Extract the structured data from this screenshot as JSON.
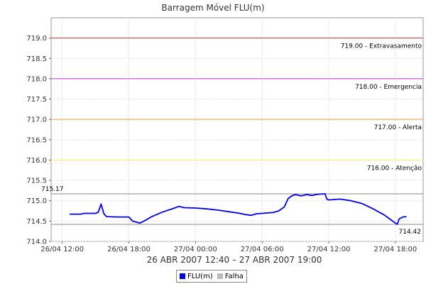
{
  "chart_data": {
    "type": "line",
    "title": "Barragem Móvel FLU(m)",
    "xlabel": "26 ABR 2007 12:40 – 27 ABR 2007 19:00",
    "ylabel": "",
    "x_ticks": [
      "26/04 12:00",
      "26/04 18:00",
      "27/04 00:00",
      "27/04 06:00",
      "27/04 12:00",
      "27/04 18:00"
    ],
    "x_range": [
      "26/04 11:00",
      "27/04 20:30"
    ],
    "ylim": [
      714.0,
      719.5
    ],
    "y_ticks": [
      "714.0",
      "714.5",
      "715.0",
      "715.5",
      "716.0",
      "716.5",
      "717.0",
      "717.5",
      "718.0",
      "718.5",
      "719.0"
    ],
    "grid": true,
    "thresholds": [
      {
        "value": 719.0,
        "label": "719.00 - Extravasamento",
        "color": "#cc3333"
      },
      {
        "value": 718.0,
        "label": "718.00 - Emergencia",
        "color": "#cc33cc"
      },
      {
        "value": 717.0,
        "label": "717.00 - Alerta",
        "color": "#ff9933"
      },
      {
        "value": 716.0,
        "label": "716.00 - Atenção",
        "color": "#ffee66"
      }
    ],
    "range_lines": [
      {
        "value": 715.17,
        "label": "715.17",
        "color": "#888888"
      },
      {
        "value": 714.42,
        "label": "714.42",
        "color": "#888888"
      }
    ],
    "series": [
      {
        "name": "FLU(m)",
        "color": "#0000ee",
        "points": [
          [
            "26/04 12:40",
            714.67
          ],
          [
            "26/04 13:40",
            714.67
          ],
          [
            "26/04 14:00",
            714.69
          ],
          [
            "26/04 15:00",
            714.69
          ],
          [
            "26/04 15:15",
            714.72
          ],
          [
            "26/04 15:30",
            714.92
          ],
          [
            "26/04 15:45",
            714.68
          ],
          [
            "26/04 16:00",
            714.61
          ],
          [
            "26/04 17:00",
            714.6
          ],
          [
            "26/04 18:00",
            714.6
          ],
          [
            "26/04 18:20",
            714.5
          ],
          [
            "26/04 19:00",
            714.45
          ],
          [
            "26/04 19:30",
            714.52
          ],
          [
            "26/04 20:00",
            714.6
          ],
          [
            "26/04 21:00",
            714.72
          ],
          [
            "26/04 22:00",
            714.81
          ],
          [
            "26/04 22:30",
            714.86
          ],
          [
            "26/04 23:00",
            714.83
          ],
          [
            "27/04 00:00",
            714.82
          ],
          [
            "27/04 01:00",
            714.8
          ],
          [
            "27/04 02:00",
            714.77
          ],
          [
            "27/04 03:00",
            714.73
          ],
          [
            "27/04 04:00",
            714.69
          ],
          [
            "27/04 04:30",
            714.66
          ],
          [
            "27/04 05:00",
            714.64
          ],
          [
            "27/04 05:30",
            714.68
          ],
          [
            "27/04 06:00",
            714.69
          ],
          [
            "27/04 07:00",
            714.71
          ],
          [
            "27/04 07:30",
            714.75
          ],
          [
            "27/04 08:00",
            714.85
          ],
          [
            "27/04 08:20",
            715.05
          ],
          [
            "27/04 08:40",
            715.12
          ],
          [
            "27/04 09:00",
            715.15
          ],
          [
            "27/04 09:30",
            715.12
          ],
          [
            "27/04 10:00",
            715.15
          ],
          [
            "27/04 10:30",
            715.13
          ],
          [
            "27/04 11:00",
            715.16
          ],
          [
            "27/04 11:40",
            715.17
          ],
          [
            "27/04 11:50",
            715.04
          ],
          [
            "27/04 12:00",
            715.02
          ],
          [
            "27/04 13:00",
            715.04
          ],
          [
            "27/04 14:00",
            715.0
          ],
          [
            "27/04 15:00",
            714.93
          ],
          [
            "27/04 16:00",
            714.8
          ],
          [
            "27/04 17:00",
            714.65
          ],
          [
            "27/04 17:30",
            714.55
          ],
          [
            "27/04 18:00",
            714.45
          ],
          [
            "27/04 18:10",
            714.42
          ],
          [
            "27/04 18:20",
            714.55
          ],
          [
            "27/04 18:40",
            714.6
          ],
          [
            "27/04 19:00",
            714.61
          ]
        ]
      }
    ],
    "legend": {
      "position": "bottom-center",
      "entries": [
        {
          "name": "FLU(m)",
          "color": "#0000ee"
        },
        {
          "name": "Falha",
          "color": "#bbbbbb"
        }
      ]
    }
  }
}
